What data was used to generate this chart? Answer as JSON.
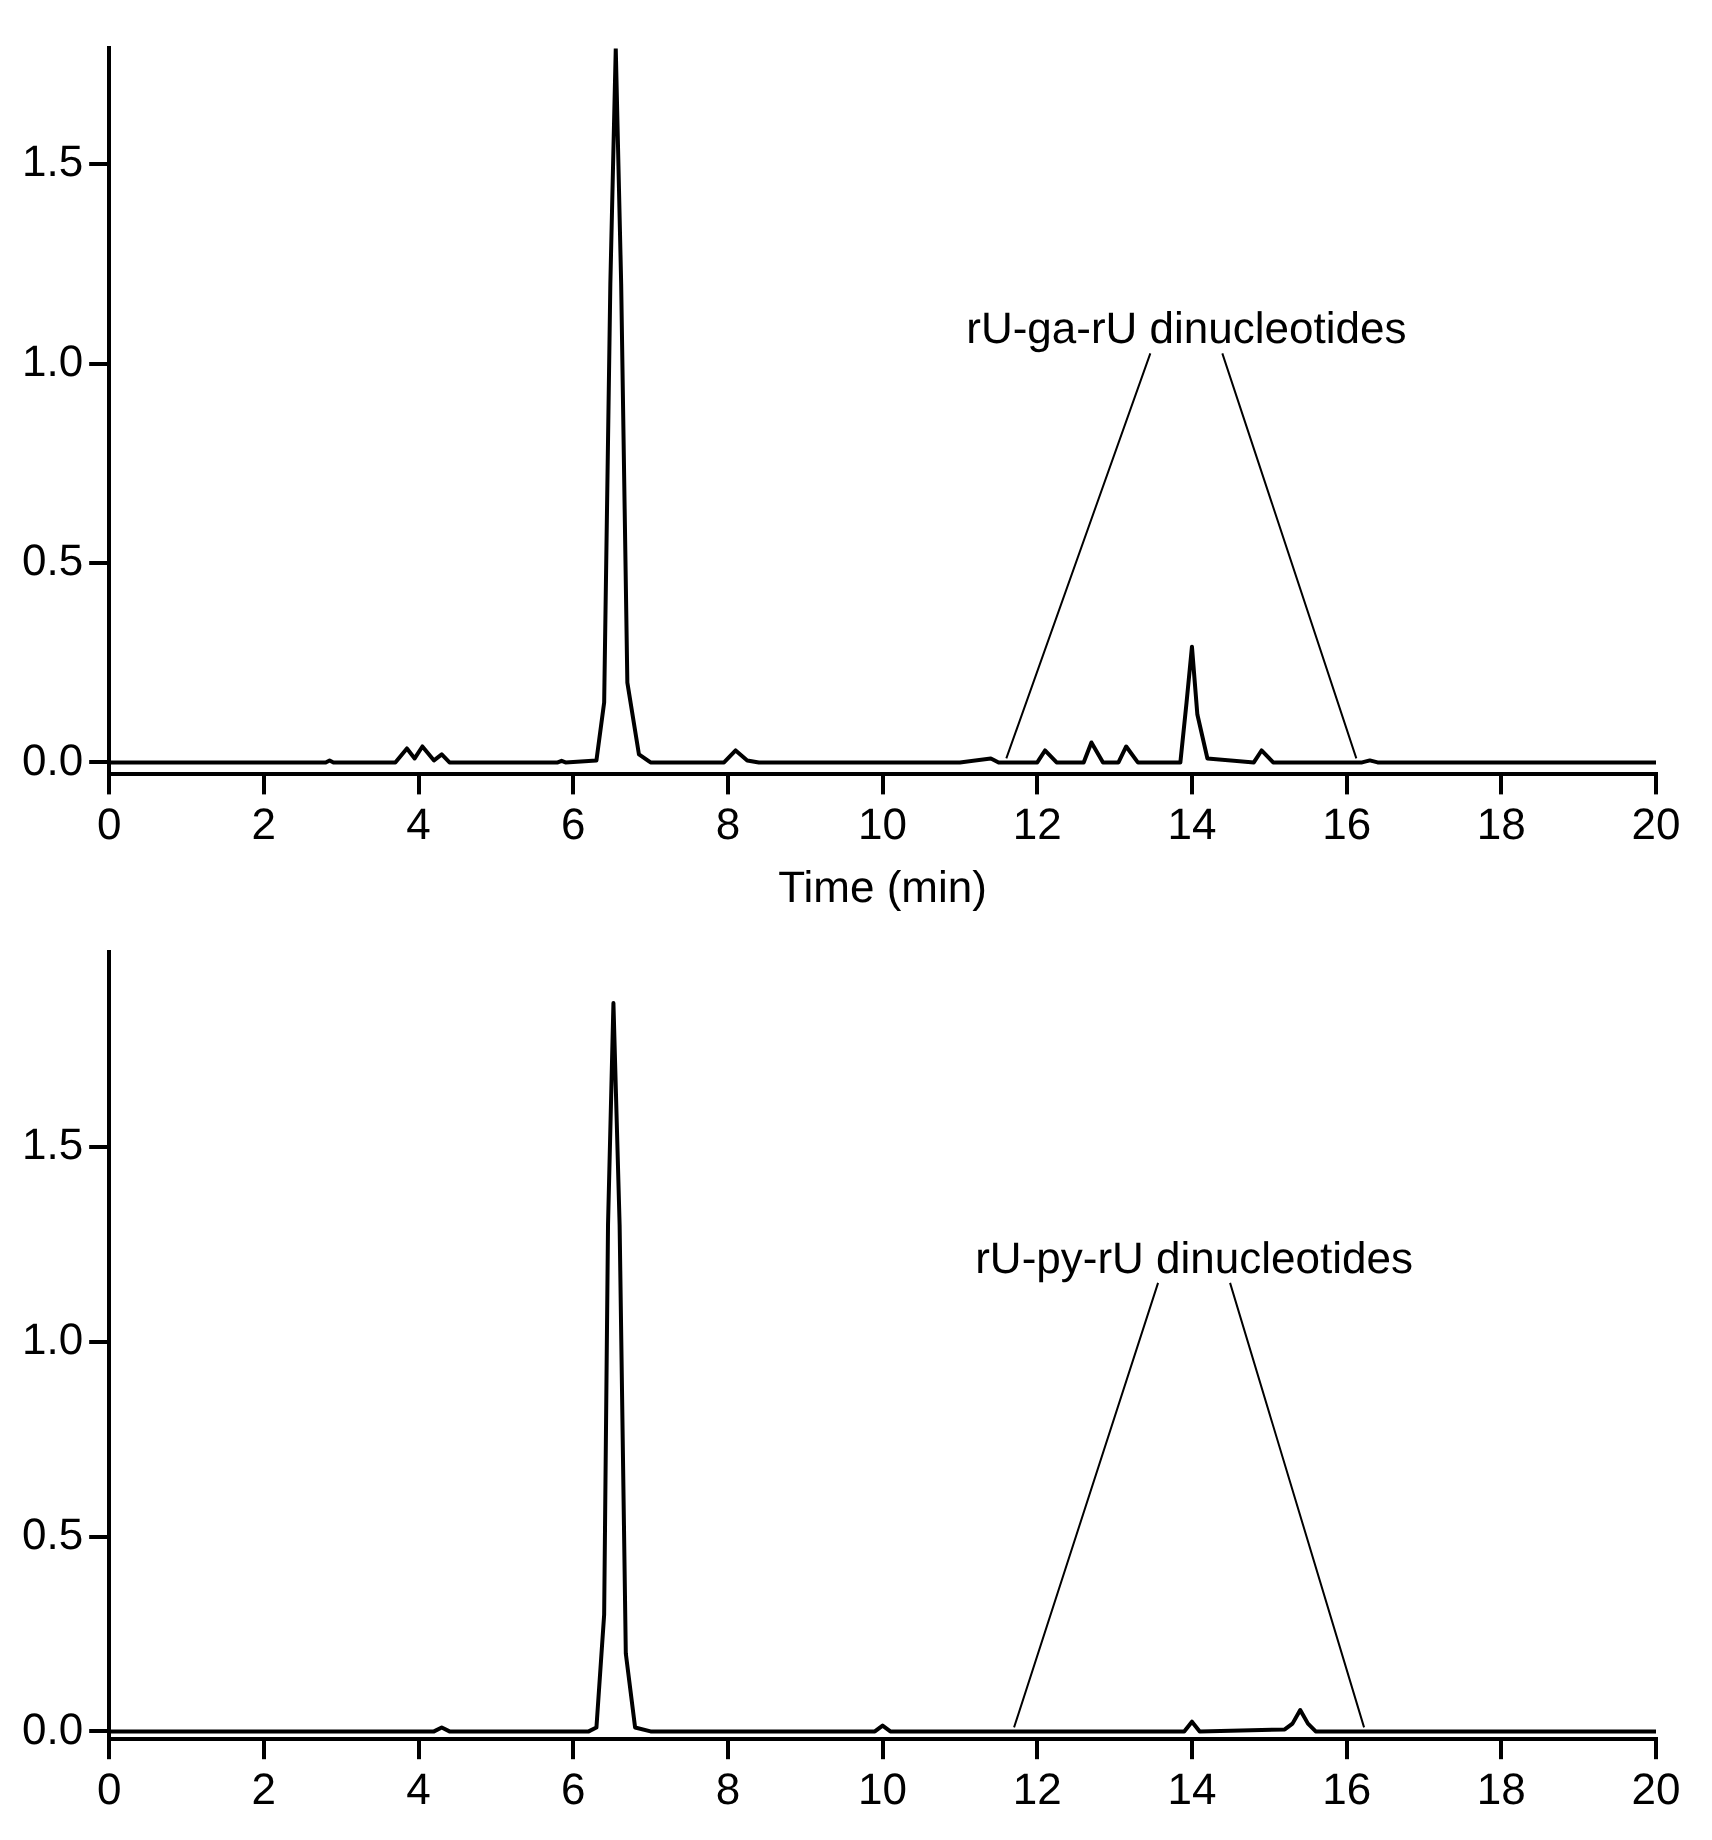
{
  "chart_data": [
    {
      "type": "line",
      "xlabel": "Time (min)",
      "x": [
        0,
        2.8,
        2.85,
        2.9,
        3.7,
        3.85,
        3.95,
        4.05,
        4.2,
        4.3,
        4.4,
        5.8,
        5.85,
        5.9,
        6.3,
        6.4,
        6.48,
        6.55,
        6.62,
        6.7,
        6.85,
        7.0,
        7.95,
        8.1,
        8.25,
        8.4,
        11.0,
        11.4,
        11.5,
        12.0,
        12.1,
        12.25,
        12.6,
        12.7,
        12.85,
        13.05,
        13.15,
        13.3,
        13.85,
        13.93,
        14.0,
        14.07,
        14.2,
        14.8,
        14.9,
        15.05,
        16.2,
        16.3,
        16.4,
        20
      ],
      "series": [
        {
          "color": "#000000",
          "values": [
            0,
            0,
            0.005,
            0,
            0,
            0.035,
            0.01,
            0.04,
            0.005,
            0.02,
            0,
            0,
            0.004,
            0,
            0.005,
            0.15,
            1.2,
            1.79,
            1.2,
            0.2,
            0.02,
            0,
            0,
            0.03,
            0.005,
            0,
            0,
            0.01,
            0,
            0,
            0.03,
            0,
            0,
            0.05,
            0,
            0,
            0.04,
            0,
            0,
            0.15,
            0.29,
            0.12,
            0.01,
            0,
            0.03,
            0,
            0,
            0.005,
            0,
            0
          ]
        }
      ],
      "xlim": [
        0,
        20
      ],
      "xticks": [
        0,
        2,
        4,
        6,
        8,
        10,
        12,
        14,
        16,
        18,
        20
      ],
      "ylim": [
        -0.03,
        1.79
      ],
      "yticks": [
        {
          "value": 0,
          "label": "0.0"
        },
        {
          "value": 0.5,
          "label": "0.5"
        },
        {
          "value": 1,
          "label": "1.0"
        },
        {
          "value": 1.5,
          "label": "1.5"
        }
      ],
      "annotations": [
        {
          "text": "rU-ga-rU dinucleotides",
          "x": 11.6,
          "y": 0
        }
      ],
      "grid": false,
      "legend": false,
      "marker": "none",
      "line_style": "solid"
    },
    {
      "type": "line",
      "x": [
        0,
        4.2,
        4.3,
        4.4,
        6.2,
        6.3,
        6.4,
        6.45,
        6.52,
        6.6,
        6.68,
        6.8,
        7.0,
        9.9,
        10.0,
        10.1,
        13.9,
        14.0,
        14.1,
        15.2,
        15.3,
        15.4,
        15.5,
        15.6,
        20
      ],
      "series": [
        {
          "color": "#000000",
          "values": [
            0,
            0,
            0.01,
            0,
            0,
            0.01,
            0.3,
            1.3,
            1.87,
            1.3,
            0.2,
            0.01,
            0,
            0,
            0.015,
            0,
            0,
            0.025,
            0,
            0.005,
            0.02,
            0.055,
            0.02,
            0,
            0
          ]
        }
      ],
      "xlim": [
        0,
        20
      ],
      "xticks": [
        0,
        2,
        4,
        6,
        8,
        10,
        12,
        14,
        16,
        18,
        20
      ],
      "ylim": [
        -0.02,
        2.0
      ],
      "yticks": [
        {
          "value": 0,
          "label": "0.0"
        },
        {
          "value": 0.5,
          "label": "0.5"
        },
        {
          "value": 1,
          "label": "1.0"
        },
        {
          "value": 1.5,
          "label": "1.5"
        }
      ],
      "annotations": [
        {
          "text": "rU-py-rU dinucleotides",
          "x": 11.7,
          "y": 0
        }
      ],
      "grid": false,
      "legend": false,
      "marker": "none",
      "line_style": "solid"
    }
  ]
}
